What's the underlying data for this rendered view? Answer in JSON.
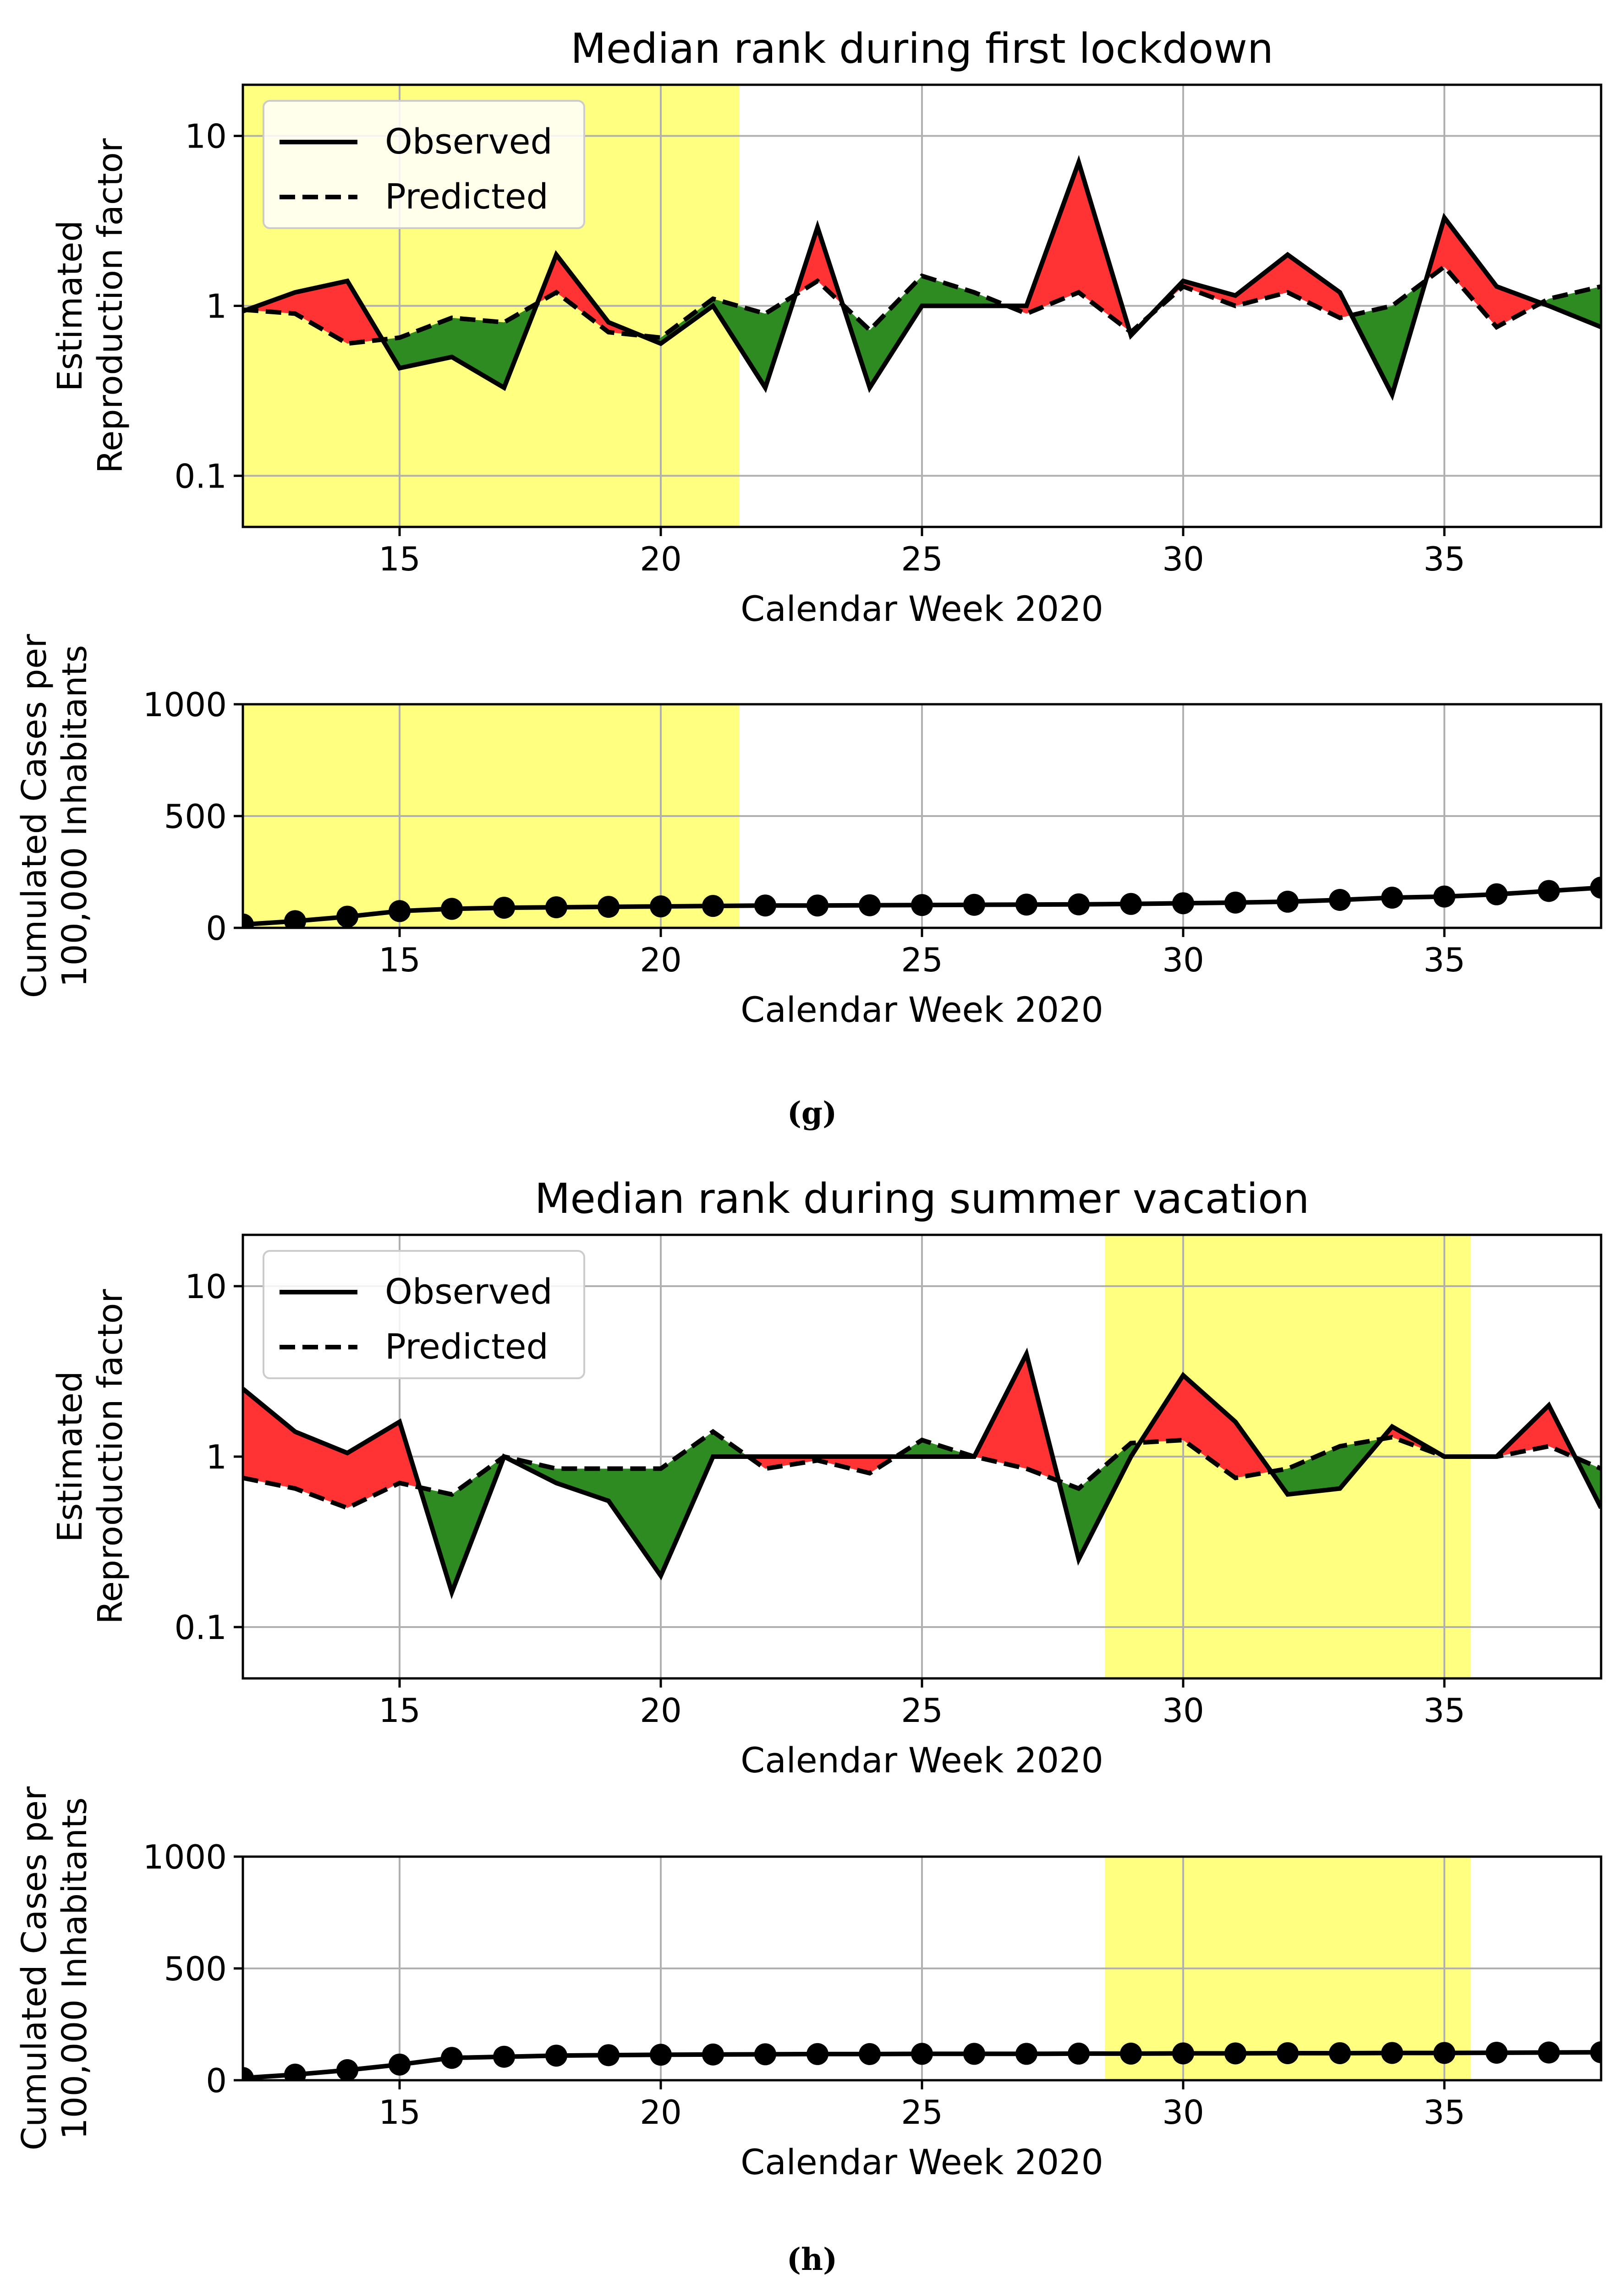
{
  "figure": {
    "panel_g_label": "(g)",
    "panel_h_label": "(h)"
  },
  "legend": {
    "observed": "Observed",
    "predicted": "Predicted"
  },
  "colors": {
    "highlight": "#ffff80",
    "above": "#ff3333",
    "below": "#2e8b22",
    "line": "#000000",
    "grid": "#b0b0b0"
  },
  "chart_data": [
    {
      "id": "g-r",
      "type": "line",
      "title": "Median rank during first lockdown",
      "xlabel": "Calendar Week 2020",
      "ylabel_lines": [
        "Estimated",
        "Reproduction factor"
      ],
      "yscale": "log",
      "xlim": [
        12,
        38
      ],
      "ylim": [
        0.05,
        20
      ],
      "xticks": [
        15,
        20,
        25,
        30,
        35
      ],
      "yticks": [
        0.1,
        1,
        10
      ],
      "ytick_labels": [
        "0.1",
        "1",
        "10"
      ],
      "highlight_span": [
        12,
        21.5
      ],
      "fill_between": "observed above predicted red, below green",
      "x": [
        12,
        13,
        14,
        15,
        16,
        17,
        18,
        19,
        20,
        21,
        22,
        23,
        24,
        25,
        26,
        27,
        28,
        29,
        30,
        31,
        32,
        33,
        34,
        35,
        36,
        37,
        38
      ],
      "series": [
        {
          "name": "Observed",
          "style": "solid",
          "values": [
            0.93,
            1.2,
            1.4,
            0.43,
            0.5,
            0.33,
            2.0,
            0.8,
            0.6,
            1.0,
            0.33,
            2.9,
            0.33,
            1.0,
            1.0,
            1.0,
            7.0,
            0.67,
            1.4,
            1.15,
            2.0,
            1.2,
            0.3,
            3.3,
            1.3,
            1.0,
            0.75
          ]
        },
        {
          "name": "Predicted",
          "style": "dashed",
          "values": [
            0.95,
            0.9,
            0.6,
            0.65,
            0.85,
            0.8,
            1.2,
            0.7,
            0.65,
            1.1,
            0.9,
            1.4,
            0.72,
            1.5,
            1.2,
            0.9,
            1.2,
            0.7,
            1.3,
            1.0,
            1.2,
            0.85,
            1.0,
            1.7,
            0.75,
            1.1,
            1.3
          ]
        }
      ]
    },
    {
      "id": "g-c",
      "type": "line",
      "xlabel": "Calendar Week 2020",
      "ylabel_lines": [
        "Cumulated Cases per",
        "100,000 Inhabitants"
      ],
      "xlim": [
        12,
        38
      ],
      "ylim": [
        0,
        1000
      ],
      "xticks": [
        15,
        20,
        25,
        30,
        35
      ],
      "yticks": [
        0,
        500,
        1000
      ],
      "ytick_labels": [
        "0",
        "500",
        "1000"
      ],
      "highlight_span": [
        12,
        21.5
      ],
      "x": [
        12,
        13,
        14,
        15,
        16,
        17,
        18,
        19,
        20,
        21,
        22,
        23,
        24,
        25,
        26,
        27,
        28,
        29,
        30,
        31,
        32,
        33,
        34,
        35,
        36,
        37,
        38
      ],
      "series": [
        {
          "name": "Cumulated cases",
          "style": "solid-markers",
          "values": [
            15,
            30,
            50,
            75,
            85,
            90,
            92,
            94,
            96,
            98,
            100,
            100,
            101,
            102,
            103,
            104,
            105,
            107,
            110,
            113,
            117,
            125,
            135,
            140,
            150,
            165,
            180
          ]
        }
      ]
    },
    {
      "id": "h-r",
      "type": "line",
      "title": "Median rank during summer vacation",
      "xlabel": "Calendar Week 2020",
      "ylabel_lines": [
        "Estimated",
        "Reproduction factor"
      ],
      "yscale": "log",
      "xlim": [
        12,
        38
      ],
      "ylim": [
        0.05,
        20
      ],
      "xticks": [
        15,
        20,
        25,
        30,
        35
      ],
      "yticks": [
        0.1,
        1,
        10
      ],
      "ytick_labels": [
        "0.1",
        "1",
        "10"
      ],
      "highlight_span": [
        28.5,
        35.5
      ],
      "fill_between": "observed above predicted red, below green",
      "x": [
        12,
        13,
        14,
        15,
        16,
        17,
        18,
        19,
        20,
        21,
        22,
        23,
        24,
        25,
        26,
        27,
        28,
        29,
        30,
        31,
        32,
        33,
        34,
        35,
        36,
        37,
        38
      ],
      "series": [
        {
          "name": "Observed",
          "style": "solid",
          "values": [
            2.5,
            1.4,
            1.05,
            1.6,
            0.16,
            1.0,
            0.7,
            0.55,
            0.2,
            1.0,
            1.0,
            1.0,
            1.0,
            1.0,
            1.0,
            4.0,
            0.25,
            1.0,
            3.0,
            1.6,
            0.6,
            0.65,
            1.5,
            1.0,
            1.0,
            2.0,
            0.5
          ]
        },
        {
          "name": "Predicted",
          "style": "dashed",
          "values": [
            0.75,
            0.65,
            0.5,
            0.7,
            0.6,
            1.0,
            0.85,
            0.85,
            0.85,
            1.4,
            0.85,
            0.95,
            0.8,
            1.25,
            1.0,
            0.85,
            0.65,
            1.2,
            1.25,
            0.75,
            0.85,
            1.15,
            1.3,
            1.0,
            1.0,
            1.15,
            0.85
          ]
        }
      ]
    },
    {
      "id": "h-c",
      "type": "line",
      "xlabel": "Calendar Week 2020",
      "ylabel_lines": [
        "Cumulated Cases per",
        "100,000 Inhabitants"
      ],
      "xlim": [
        12,
        38
      ],
      "ylim": [
        0,
        1000
      ],
      "xticks": [
        15,
        20,
        25,
        30,
        35
      ],
      "yticks": [
        0,
        500,
        1000
      ],
      "ytick_labels": [
        "0",
        "500",
        "1000"
      ],
      "highlight_span": [
        28.5,
        35.5
      ],
      "x": [
        12,
        13,
        14,
        15,
        16,
        17,
        18,
        19,
        20,
        21,
        22,
        23,
        24,
        25,
        26,
        27,
        28,
        29,
        30,
        31,
        32,
        33,
        34,
        35,
        36,
        37,
        38
      ],
      "series": [
        {
          "name": "Cumulated cases",
          "style": "solid-markers",
          "values": [
            10,
            25,
            45,
            70,
            100,
            105,
            110,
            112,
            114,
            115,
            116,
            117,
            117,
            118,
            118,
            118,
            119,
            119,
            120,
            120,
            121,
            121,
            122,
            122,
            123,
            124,
            125
          ]
        }
      ]
    }
  ]
}
